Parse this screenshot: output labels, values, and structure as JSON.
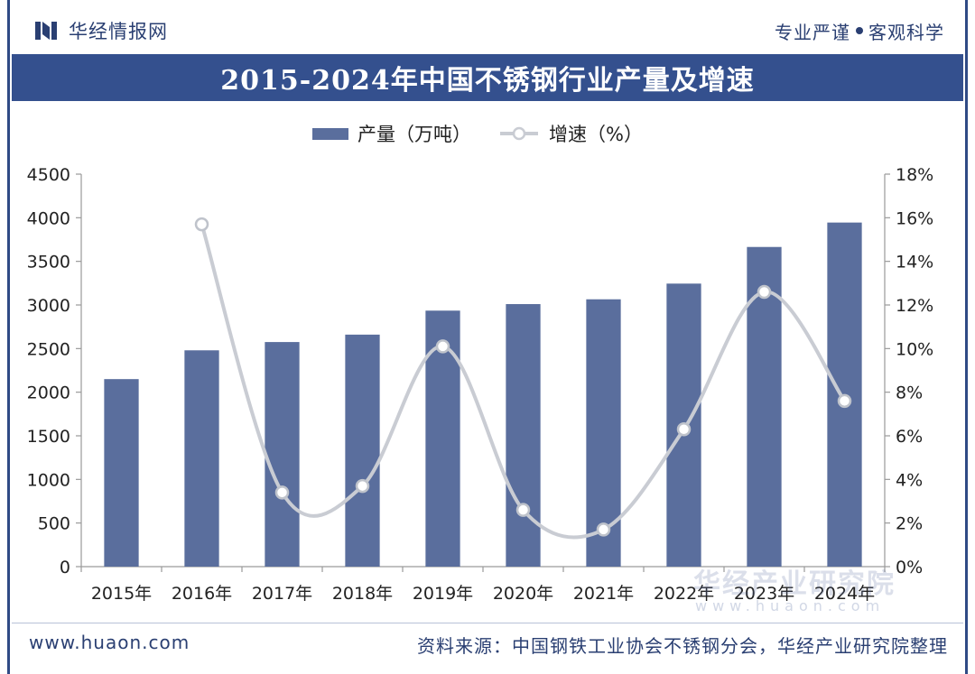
{
  "header": {
    "brand": "华经情报网",
    "slogan_left": "专业严谨",
    "slogan_right": "客观科学"
  },
  "colors": {
    "bar": "#5a6e9d",
    "line": "#c9ccd3",
    "title_bg": "#34508e",
    "brand_text": "#2a3f72"
  },
  "chart_data": {
    "type": "bar",
    "title": "2015-2024年中国不锈钢行业产量及增速",
    "categories": [
      "2015年",
      "2016年",
      "2017年",
      "2018年",
      "2019年",
      "2020年",
      "2021年",
      "2022年",
      "2023年",
      "2024年"
    ],
    "series": [
      {
        "name": "产量（万吨）",
        "type": "bar",
        "axis": "left",
        "values": [
          2150,
          2480,
          2575,
          2660,
          2935,
          3010,
          3065,
          3245,
          3665,
          3945
        ]
      },
      {
        "name": "增速（%）",
        "type": "line",
        "axis": "right",
        "values": [
          null,
          15.7,
          3.4,
          3.7,
          10.1,
          2.6,
          1.7,
          6.3,
          12.6,
          7.6
        ]
      }
    ],
    "ylim_left": [
      0,
      4500
    ],
    "yticks_left": [
      "0",
      "500",
      "1000",
      "1500",
      "2000",
      "2500",
      "3000",
      "3500",
      "4000",
      "4500"
    ],
    "ylim_right": [
      0,
      18
    ],
    "yticks_right": [
      "0%",
      "2%",
      "4%",
      "6%",
      "8%",
      "10%",
      "12%",
      "14%",
      "16%",
      "18%"
    ],
    "legend": {
      "bar_label": "产量（万吨）",
      "line_label": "增速（%）",
      "placement": "top-center"
    }
  },
  "footer": {
    "url": "www.huaon.com",
    "source": "资料来源：中国钢铁工业协会不锈钢分会，华经产业研究院整理"
  },
  "watermark": {
    "brand": "华经产业研究院",
    "url": "www.huaon.com"
  }
}
